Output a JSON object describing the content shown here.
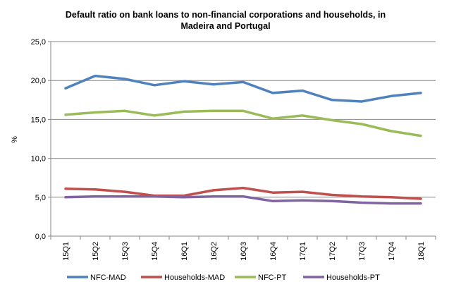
{
  "chart_data": {
    "type": "line",
    "title_lines": [
      "Default ratio on bank loans to non-financial corporations and households, in",
      "Madeira and Portugal"
    ],
    "xlabel": "",
    "ylabel": "%",
    "ylim": [
      0,
      25
    ],
    "yticks": [
      "0,0",
      "5,0",
      "10,0",
      "15,0",
      "20,0",
      "25,0"
    ],
    "grid": true,
    "legend_position": "bottom",
    "categories": [
      "15Q1",
      "15Q2",
      "15Q3",
      "15Q4",
      "16Q1",
      "16Q2",
      "16Q3",
      "16Q4",
      "17Q1",
      "17Q2",
      "17Q3",
      "17Q4",
      "18Q1"
    ],
    "series": [
      {
        "name": "NFC-MAD",
        "color": "#4F81BD",
        "values": [
          19.0,
          20.6,
          20.2,
          19.4,
          19.9,
          19.5,
          19.8,
          18.4,
          18.7,
          17.5,
          17.3,
          18.0,
          18.4
        ]
      },
      {
        "name": "Households-MAD",
        "color": "#C0504D",
        "values": [
          6.1,
          6.0,
          5.7,
          5.2,
          5.2,
          5.9,
          6.2,
          5.6,
          5.7,
          5.3,
          5.1,
          5.0,
          4.8
        ]
      },
      {
        "name": "NFC-PT",
        "color": "#9BBB59",
        "values": [
          15.6,
          15.9,
          16.1,
          15.5,
          16.0,
          16.1,
          16.1,
          15.1,
          15.5,
          14.9,
          14.4,
          13.5,
          12.9
        ]
      },
      {
        "name": "Households-PT",
        "color": "#8064A2",
        "values": [
          5.0,
          5.1,
          5.1,
          5.1,
          5.0,
          5.1,
          5.1,
          4.5,
          4.6,
          4.5,
          4.3,
          4.2,
          4.2
        ]
      }
    ]
  }
}
